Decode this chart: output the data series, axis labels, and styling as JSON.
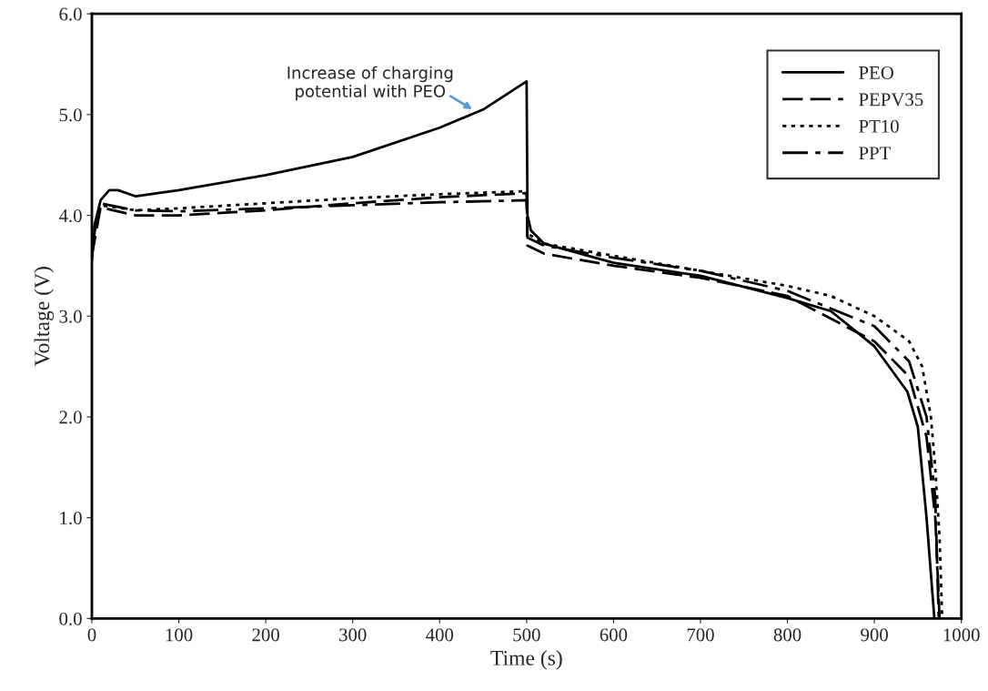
{
  "chart_data": {
    "type": "line",
    "xlabel": "Time (s)",
    "ylabel": "Voltage (V)",
    "xlim": [
      0,
      1000
    ],
    "ylim": [
      0,
      6
    ],
    "xticks": [
      0,
      100,
      200,
      300,
      400,
      500,
      600,
      700,
      800,
      900,
      1000
    ],
    "yticks": [
      {
        "value": 0,
        "label": "0.0"
      },
      {
        "value": 1,
        "label": "1.0"
      },
      {
        "value": 2,
        "label": "2.0"
      },
      {
        "value": 3,
        "label": "3.0"
      },
      {
        "value": 4,
        "label": "4.0"
      },
      {
        "value": 5,
        "label": "5.0"
      },
      {
        "value": 6,
        "label": "6.0"
      }
    ],
    "grid": false,
    "legend": "top right",
    "marker": "none",
    "annotations": [
      "Increase of charging\npotential with PEO"
    ],
    "series": [
      {
        "name": "PEO",
        "color": "#000000",
        "line_style": "solid",
        "x": [
          0,
          3,
          10,
          20,
          30,
          50,
          100,
          200,
          300,
          400,
          450,
          500,
          501,
          505,
          520,
          600,
          700,
          800,
          850,
          900,
          938,
          950,
          960,
          969
        ],
        "values": [
          3.55,
          3.9,
          4.15,
          4.25,
          4.25,
          4.19,
          4.25,
          4.4,
          4.58,
          4.87,
          5.05,
          5.33,
          4.0,
          3.85,
          3.72,
          3.53,
          3.4,
          3.18,
          3.05,
          2.7,
          2.25,
          1.9,
          1.0,
          0.0
        ]
      },
      {
        "name": "PEPV35",
        "color": "#000000",
        "line_style": "dashed",
        "x": [
          0,
          10,
          50,
          100,
          200,
          300,
          400,
          500,
          501,
          520,
          600,
          700,
          800,
          900,
          940,
          960,
          970,
          975
        ],
        "values": [
          3.6,
          4.08,
          4.0,
          4.0,
          4.05,
          4.12,
          4.18,
          4.22,
          3.7,
          3.62,
          3.5,
          3.38,
          3.2,
          2.75,
          2.4,
          1.8,
          1.0,
          0.0
        ]
      },
      {
        "name": "PT10",
        "color": "#000000",
        "line_style": "dotted",
        "x": [
          0,
          10,
          50,
          100,
          200,
          300,
          400,
          500,
          501,
          520,
          600,
          700,
          800,
          850,
          900,
          940,
          955,
          965,
          970,
          975,
          978
        ],
        "values": [
          3.7,
          4.1,
          4.05,
          4.07,
          4.12,
          4.17,
          4.21,
          4.24,
          3.82,
          3.72,
          3.6,
          3.45,
          3.3,
          3.2,
          3.0,
          2.75,
          2.5,
          2.0,
          1.5,
          0.8,
          0.0
        ]
      },
      {
        "name": "PPT",
        "color": "#000000",
        "line_style": "dashdot",
        "x": [
          0,
          10,
          50,
          100,
          200,
          300,
          400,
          500,
          501,
          520,
          600,
          700,
          800,
          900,
          940,
          960,
          970,
          974
        ],
        "values": [
          3.7,
          4.12,
          4.05,
          4.04,
          4.07,
          4.1,
          4.13,
          4.15,
          3.78,
          3.7,
          3.58,
          3.45,
          3.25,
          2.9,
          2.55,
          2.0,
          1.2,
          0.0
        ]
      }
    ]
  }
}
